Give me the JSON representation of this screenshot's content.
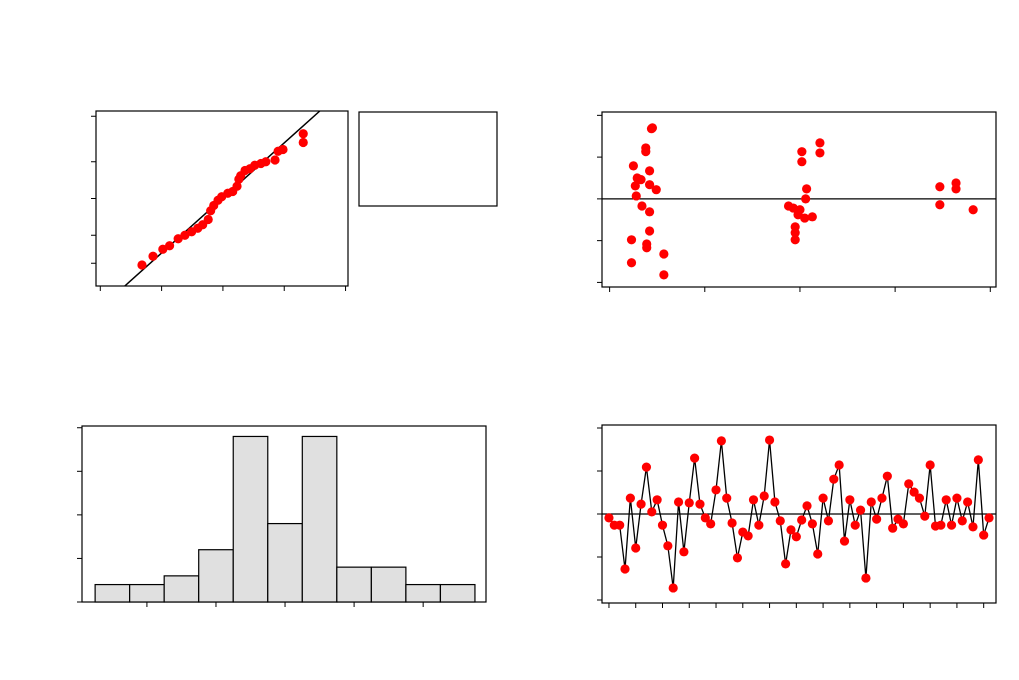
{
  "chart_data": [
    {
      "type": "scatter",
      "color": "#ff0000",
      "line_color": "#000000",
      "x": [
        -1.32,
        -1.14,
        -0.98,
        -0.87,
        -0.73,
        -0.62,
        -0.51,
        -0.41,
        -0.33,
        -0.24,
        -0.2,
        -0.15,
        -0.08,
        -0.02,
        0.08,
        0.16,
        0.23,
        0.26,
        0.29,
        0.36,
        0.44,
        0.52,
        0.62,
        0.7,
        0.85,
        0.9,
        0.98,
        1.31,
        1.31
      ],
      "y": [
        12,
        17,
        21,
        23,
        27,
        29,
        31,
        33,
        35,
        38,
        43,
        46,
        49,
        51,
        53,
        54,
        57,
        61,
        63,
        66,
        67,
        69,
        70,
        71,
        72,
        77,
        78,
        82,
        87
      ],
      "fit": {
        "x": [
          -1.6,
          1.58
        ],
        "y": [
          0,
          100
        ]
      },
      "xlim": [
        -2.07,
        2.04
      ],
      "xticks": [
        -2,
        -1,
        0,
        1,
        2
      ],
      "ylim": [
        0,
        100
      ],
      "yticks": [
        13,
        29,
        50,
        71,
        97
      ],
      "grid": false
    },
    {
      "type": "scatter",
      "color": "#ff0000",
      "line_color": "#000000",
      "hline": 0,
      "x": [
        0.45,
        0.44,
        0.38,
        0.38,
        0.25,
        0.42,
        0.29,
        0.33,
        0.27,
        0.42,
        0.49,
        0.28,
        0.34,
        0.42,
        0.42,
        0.23,
        0.39,
        0.39,
        0.57,
        0.23,
        0.57,
        2.21,
        2.21,
        2.02,
        2.02,
        2.07,
        2.06,
        1.88,
        1.93,
        2.0,
        1.98,
        2.05,
        2.13,
        1.95,
        1.95,
        1.95,
        3.47,
        3.64,
        3.64,
        3.47,
        3.82
      ],
      "y": [
        1.7,
        1.68,
        1.22,
        1.13,
        0.79,
        0.67,
        0.5,
        0.46,
        0.31,
        0.34,
        0.22,
        0.07,
        -0.17,
        -0.31,
        -0.77,
        -0.98,
        -1.08,
        -1.17,
        -1.32,
        -1.53,
        -1.82,
        1.34,
        1.1,
        1.13,
        0.89,
        0.24,
        0,
        -0.17,
        -0.22,
        -0.26,
        -0.38,
        -0.46,
        -0.43,
        -0.67,
        -0.81,
        -0.98,
        0.29,
        0.38,
        0.24,
        -0.14,
        -0.26
      ],
      "xlim": [
        -0.08,
        4.06
      ],
      "xticks": [
        0,
        1,
        2,
        3,
        4
      ],
      "ylim": [
        -2.11,
        2.08
      ],
      "yticks": [
        -2,
        -1,
        0,
        1,
        2
      ],
      "grid": false
    },
    {
      "type": "histogram",
      "color": "#e0e0e0",
      "line_color": "#000000",
      "bins": [
        -2.75,
        -2.25,
        -1.75,
        -1.25,
        -0.75,
        -0.25,
        0.25,
        0.75,
        1.25,
        1.75,
        2.25,
        2.75
      ],
      "values": [
        2,
        2,
        3,
        6,
        19,
        9,
        19,
        4,
        4,
        2,
        2
      ],
      "xlim": [
        -2.94,
        2.91
      ],
      "xticks": [
        -2,
        -1,
        0,
        1,
        2
      ],
      "ylim": [
        0,
        20.2
      ],
      "yticks": [
        0,
        5,
        10,
        15,
        20
      ],
      "grid": false
    },
    {
      "type": "line",
      "color": "#ff0000",
      "line_color": "#000000",
      "hline": 0,
      "x": [
        1,
        2,
        3,
        4,
        5,
        6,
        7,
        8,
        9,
        10,
        11,
        12,
        13,
        14,
        15,
        16,
        17,
        18,
        19,
        20,
        21,
        22,
        23,
        24,
        25,
        26,
        27,
        28,
        29,
        30,
        31,
        32,
        33,
        34,
        35,
        36,
        37,
        38,
        39,
        40,
        41,
        42,
        43,
        44,
        45,
        46,
        47,
        48,
        49,
        50,
        51,
        52,
        53,
        54,
        55,
        56,
        57,
        58,
        59,
        60,
        61,
        62,
        63,
        64,
        65,
        66,
        67,
        68,
        69,
        70,
        71,
        72
      ],
      "values": [
        -0.09,
        -0.26,
        -0.26,
        -1.28,
        0.37,
        -0.79,
        0.23,
        1.09,
        0.05,
        0.33,
        -0.26,
        -0.74,
        -1.72,
        0.28,
        -0.88,
        0.26,
        1.3,
        0.23,
        -0.09,
        -0.23,
        0.56,
        1.7,
        0.37,
        -0.21,
        -1.02,
        -0.42,
        -0.51,
        0.33,
        -0.26,
        0.42,
        1.72,
        0.28,
        -0.16,
        -1.16,
        -0.37,
        -0.53,
        -0.14,
        0.19,
        -0.23,
        -0.93,
        0.37,
        -0.16,
        0.81,
        1.14,
        -0.63,
        0.33,
        -0.26,
        0.09,
        -1.49,
        0.28,
        -0.12,
        0.37,
        0.88,
        -0.33,
        -0.12,
        -0.23,
        0.7,
        0.51,
        0.37,
        -0.05,
        1.14,
        -0.28,
        -0.26,
        0.33,
        -0.26,
        0.37,
        -0.16,
        0.28,
        -0.3,
        1.26,
        -0.49,
        -0.09
      ],
      "xlim": [
        -0.3,
        73.3
      ],
      "xticks": [
        1,
        6,
        11,
        16,
        21,
        26,
        31,
        36,
        41,
        46,
        51,
        56,
        61,
        66,
        71
      ],
      "ylim": [
        -2.07,
        2.07
      ],
      "yticks": [
        -2,
        -1,
        0,
        1,
        2
      ],
      "grid": false
    }
  ]
}
